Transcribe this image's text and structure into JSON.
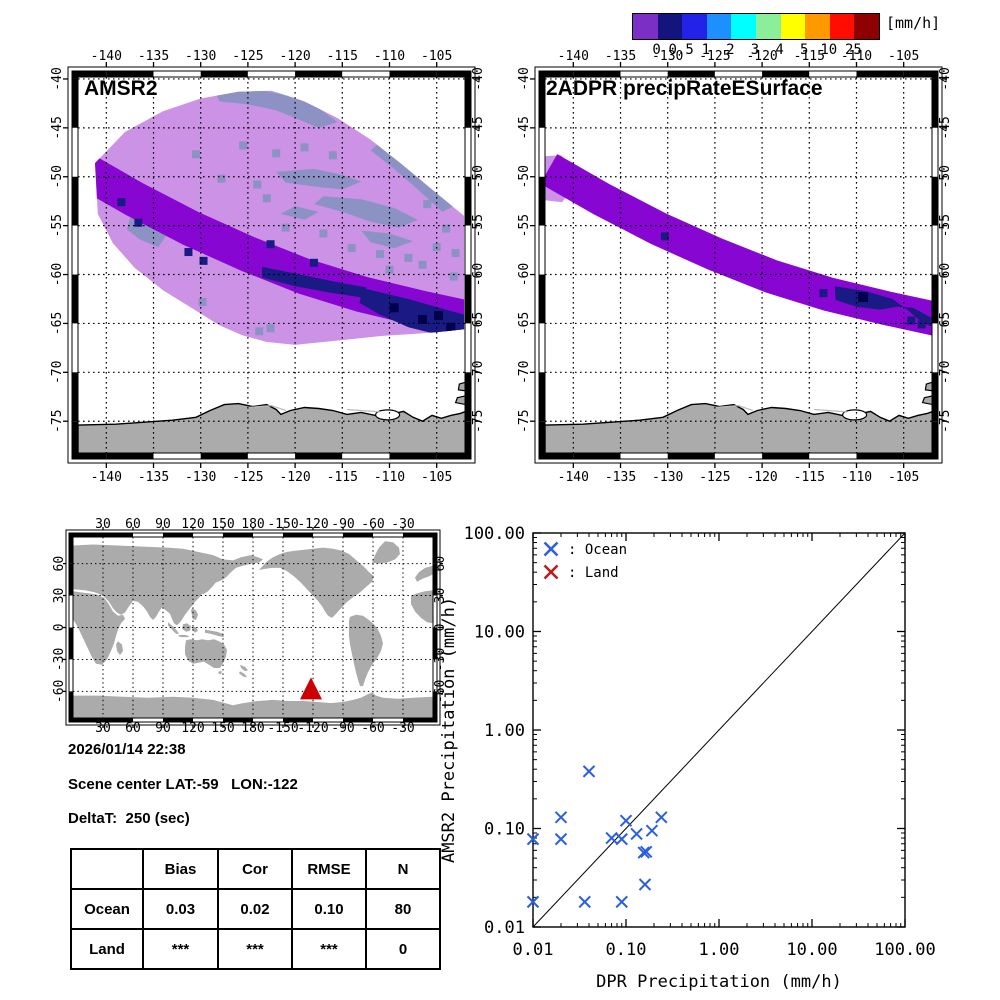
{
  "colorbar": {
    "unit": "[mm/h]",
    "labels": [
      "0",
      "0.5",
      "1",
      "2",
      "3",
      "4",
      "5",
      "10",
      "25"
    ],
    "colors": [
      "#7B2FC4",
      "#14147E",
      "#2222E8",
      "#1E8FFF",
      "#00FFFF",
      "#8CEE9A",
      "#FFFF00",
      "#FF9900",
      "#FF0D00",
      "#8F0000"
    ]
  },
  "maps": {
    "left": {
      "title": "AMSR2"
    },
    "right": {
      "title": "2ADPR precipRateESurface"
    },
    "lon_ticks": [
      "-140",
      "-135",
      "-130",
      "-125",
      "-120",
      "-115",
      "-110",
      "-105"
    ],
    "lat_ticks": [
      "-40",
      "-45",
      "-50",
      "-55",
      "-60",
      "-65",
      "-70",
      "-75"
    ],
    "colors": {
      "swath_bg": "#CC92E5",
      "band": "#8806D2",
      "navy": "#1A1A84",
      "navy_dark": "#00004E",
      "gray_patch": "#8C93C4",
      "land": "#ABABAB",
      "coast": "#000000",
      "shelf_line": "#BBBBBB"
    }
  },
  "world_map": {
    "lon_ticks": [
      "30",
      "60",
      "90",
      "120",
      "150",
      "180",
      "-150",
      "-120",
      "-90",
      "-60",
      "-30"
    ],
    "lat_ticks": [
      "60",
      "30",
      "0",
      "-30",
      "-60"
    ],
    "marker": {
      "shape": "triangle",
      "lat": -59,
      "lon": -122,
      "color": "#CC0000"
    },
    "land_color": "#ABABAB"
  },
  "info": {
    "datetime": "2026/01/14 22:38",
    "scene_center": "Scene center LAT:-59   LON:-122",
    "delta_t": "DeltaT:  250 (sec)"
  },
  "stats_table": {
    "headers": [
      "",
      "Bias",
      "Cor",
      "RMSE",
      "N"
    ],
    "rows": [
      {
        "label": "Ocean",
        "cells": [
          "0.03",
          "0.02",
          "0.10",
          "80"
        ]
      },
      {
        "label": "Land",
        "cells": [
          "***",
          "***",
          "***",
          "0"
        ]
      }
    ]
  },
  "chart_data": {
    "type": "scatter",
    "xlabel": "DPR Precipitation (mm/h)",
    "ylabel": "AMSR2 Precipitation (mm/h)",
    "xscale": "log",
    "yscale": "log",
    "xlim": [
      0.01,
      100.0
    ],
    "ylim": [
      0.01,
      100.0
    ],
    "x_tick_labels": [
      "0.01",
      "0.10",
      "1.00",
      "10.00",
      "100.00"
    ],
    "y_tick_labels": [
      "0.01",
      "0.10",
      "1.00",
      "10.00",
      "100.00"
    ],
    "reference_line": {
      "type": "1:1 diagonal",
      "from": [
        0.01,
        0.01
      ],
      "to": [
        100.0,
        100.0
      ]
    },
    "legend": [
      {
        "label": ": Ocean",
        "marker": "x",
        "color": "#2B5FE0"
      },
      {
        "label": ": Land",
        "marker": "x",
        "color": "#BE1A1A"
      }
    ],
    "series": [
      {
        "name": "Ocean",
        "color": "#2B5FE0",
        "marker": "x",
        "points": [
          [
            0.04,
            0.38
          ],
          [
            0.02,
            0.13
          ],
          [
            0.1,
            0.12
          ],
          [
            0.24,
            0.13
          ],
          [
            0.19,
            0.095
          ],
          [
            0.13,
            0.088
          ],
          [
            0.01,
            0.078
          ],
          [
            0.02,
            0.078
          ],
          [
            0.07,
            0.08
          ],
          [
            0.09,
            0.078
          ],
          [
            0.155,
            0.057
          ],
          [
            0.165,
            0.058
          ],
          [
            0.16,
            0.027
          ],
          [
            0.01,
            0.018
          ],
          [
            0.036,
            0.018
          ],
          [
            0.09,
            0.018
          ]
        ]
      },
      {
        "name": "Land",
        "color": "#BE1A1A",
        "marker": "x",
        "points": []
      }
    ]
  }
}
